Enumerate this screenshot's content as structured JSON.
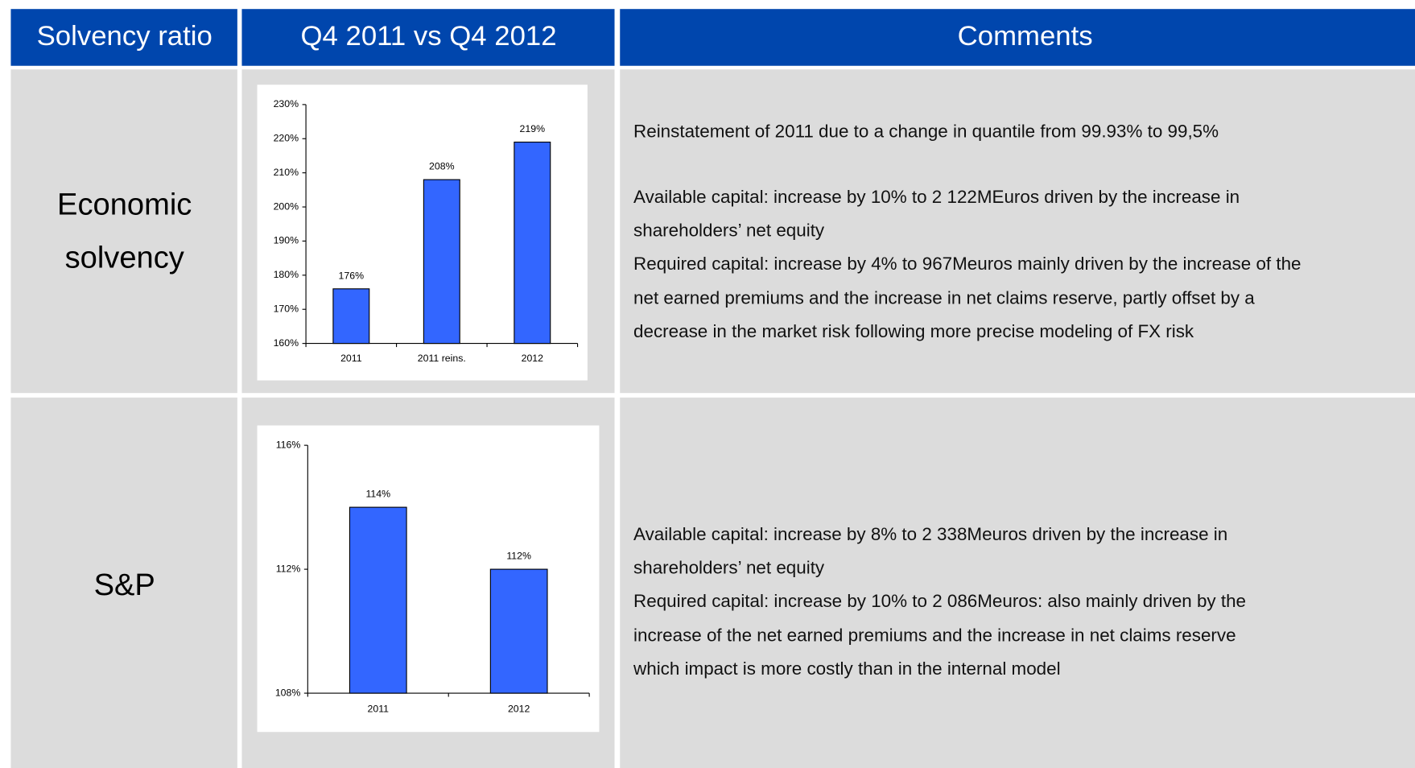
{
  "table": {
    "headers": [
      "Solvency ratio",
      "Q4 2011 vs Q4 2012",
      "Comments"
    ],
    "rows": [
      {
        "label": [
          "Economic",
          "solvency"
        ],
        "chart": {
          "type": "bar",
          "categories": [
            "2011",
            "2011 reins.",
            "2012"
          ],
          "values": [
            176,
            208,
            219
          ],
          "value_labels": [
            "176%",
            "208%",
            "219%"
          ],
          "color": "#3366ff",
          "ylim": [
            160,
            230
          ],
          "yticks": [
            {
              "value": 160,
              "label": "160%"
            },
            {
              "value": 170,
              "label": "170%"
            },
            {
              "value": 180,
              "label": "180%"
            },
            {
              "value": 190,
              "label": "190%"
            },
            {
              "value": 200,
              "label": "200%"
            },
            {
              "value": 210,
              "label": "210%"
            },
            {
              "value": 220,
              "label": "220%"
            },
            {
              "value": 230,
              "label": "230%"
            }
          ]
        },
        "comments": [
          "Reinstatement of 2011 due to a change in quantile from 99.93% to 99,5%",
          "Available capital: increase by 10% to 2 122MEuros driven by the increase in",
          "shareholders’ net equity",
          "Required capital: increase by 4% to 967Meuros mainly driven by the increase of the",
          "net earned premiums and the increase in net claims reserve, partly offset by a",
          "decrease in the market risk following more precise modeling of FX risk"
        ]
      },
      {
        "label": [
          "S&P"
        ],
        "chart": {
          "type": "bar",
          "categories": [
            "2011",
            "2012"
          ],
          "values": [
            114,
            112
          ],
          "value_labels": [
            "114%",
            "112%"
          ],
          "color": "#3366ff",
          "ylim": [
            108,
            116
          ],
          "yticks": [
            {
              "value": 108,
              "label": "108%"
            },
            {
              "value": 112,
              "label": "112%"
            },
            {
              "value": 116,
              "label": "116%"
            }
          ]
        },
        "comments": [
          "Available capital: increase by 8% to 2 338Meuros driven by the increase in",
          "shareholders’ net equity",
          "Required capital: increase by 10% to 2 086Meuros: also mainly driven by the",
          "increase of the net earned premiums and the increase in net claims reserve",
          "which impact is more costly than in the internal model"
        ]
      }
    ]
  }
}
